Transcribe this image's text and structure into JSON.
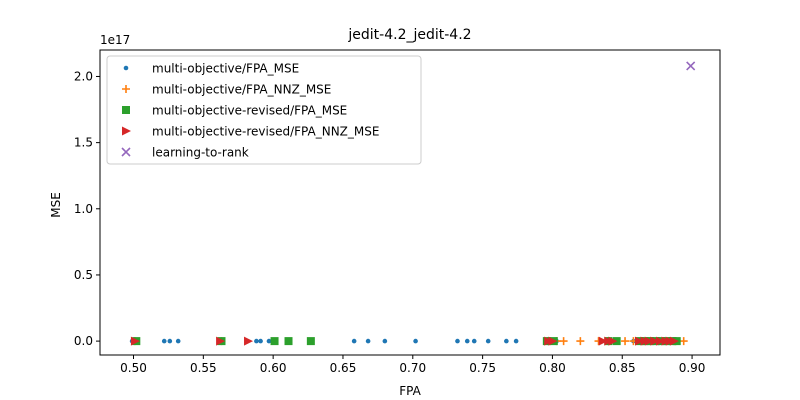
{
  "chart_data": {
    "type": "scatter",
    "title": "jedit-4.2_jedit-4.2",
    "xlabel": "FPA",
    "ylabel": "MSE",
    "y_offset_label": "1e17",
    "xlim": [
      0.476,
      0.92
    ],
    "ylim": [
      -0.105,
      2.2
    ],
    "x_ticks": [
      0.5,
      0.55,
      0.6,
      0.65,
      0.7,
      0.75,
      0.8,
      0.85,
      0.9
    ],
    "x_tick_labels": [
      "0.50",
      "0.55",
      "0.60",
      "0.65",
      "0.70",
      "0.75",
      "0.80",
      "0.85",
      "0.90"
    ],
    "y_ticks": [
      0.0,
      0.5,
      1.0,
      1.5,
      2.0
    ],
    "y_tick_labels": [
      "0.0",
      "0.5",
      "1.0",
      "1.5",
      "2.0"
    ],
    "grid": false,
    "legend_position": "top-left",
    "series": [
      {
        "name": "multi-objective/FPA_MSE",
        "marker": "dot",
        "color": "#1f77b4",
        "x": [
          0.499,
          0.503,
          0.522,
          0.526,
          0.532,
          0.563,
          0.588,
          0.591,
          0.597,
          0.611,
          0.658,
          0.668,
          0.68,
          0.702,
          0.732,
          0.739,
          0.744,
          0.754,
          0.767,
          0.774,
          0.8,
          0.803,
          0.835,
          0.84,
          0.845,
          0.858,
          0.863,
          0.868,
          0.872,
          0.877,
          0.881,
          0.886
        ],
        "y": [
          0,
          0,
          0,
          0,
          0,
          0,
          0,
          0,
          0,
          0,
          0,
          0,
          0,
          0,
          0,
          0,
          0,
          0,
          0,
          0,
          0,
          0,
          0,
          0,
          0,
          0,
          0,
          0,
          0,
          0,
          0,
          0
        ]
      },
      {
        "name": "multi-objective/FPA_NNZ_MSE",
        "marker": "plus",
        "color": "#ff7f0e",
        "x": [
          0.501,
          0.563,
          0.797,
          0.803,
          0.808,
          0.82,
          0.833,
          0.84,
          0.852,
          0.858,
          0.865,
          0.87,
          0.876,
          0.882,
          0.888,
          0.894
        ],
        "y": [
          0,
          0,
          0,
          0,
          0,
          0,
          0,
          0,
          0,
          0,
          0,
          0,
          0,
          0,
          0,
          0
        ]
      },
      {
        "name": "multi-objective-revised/FPA_MSE",
        "marker": "square",
        "color": "#2ca02c",
        "x": [
          0.502,
          0.563,
          0.601,
          0.611,
          0.627,
          0.796,
          0.801,
          0.84,
          0.846,
          0.862,
          0.866,
          0.87,
          0.874,
          0.878,
          0.882,
          0.886,
          0.889
        ],
        "y": [
          0,
          0,
          0,
          0,
          0,
          0,
          0,
          0,
          0,
          0,
          0,
          0,
          0,
          0,
          0,
          0,
          0
        ]
      },
      {
        "name": "multi-objective-revised/FPA_NNZ_MSE",
        "marker": "triangle-right",
        "color": "#d62728",
        "x": [
          0.501,
          0.562,
          0.582,
          0.797,
          0.8,
          0.836,
          0.84,
          0.843,
          0.862,
          0.866,
          0.869,
          0.873,
          0.877,
          0.881,
          0.884,
          0.887
        ],
        "y": [
          0,
          0,
          0,
          0,
          0,
          0,
          0,
          0,
          0,
          0,
          0,
          0,
          0,
          0,
          0,
          0
        ]
      },
      {
        "name": "learning-to-rank",
        "marker": "x",
        "color": "#9467bd",
        "x": [
          0.899
        ],
        "y": [
          2.08
        ]
      }
    ]
  }
}
